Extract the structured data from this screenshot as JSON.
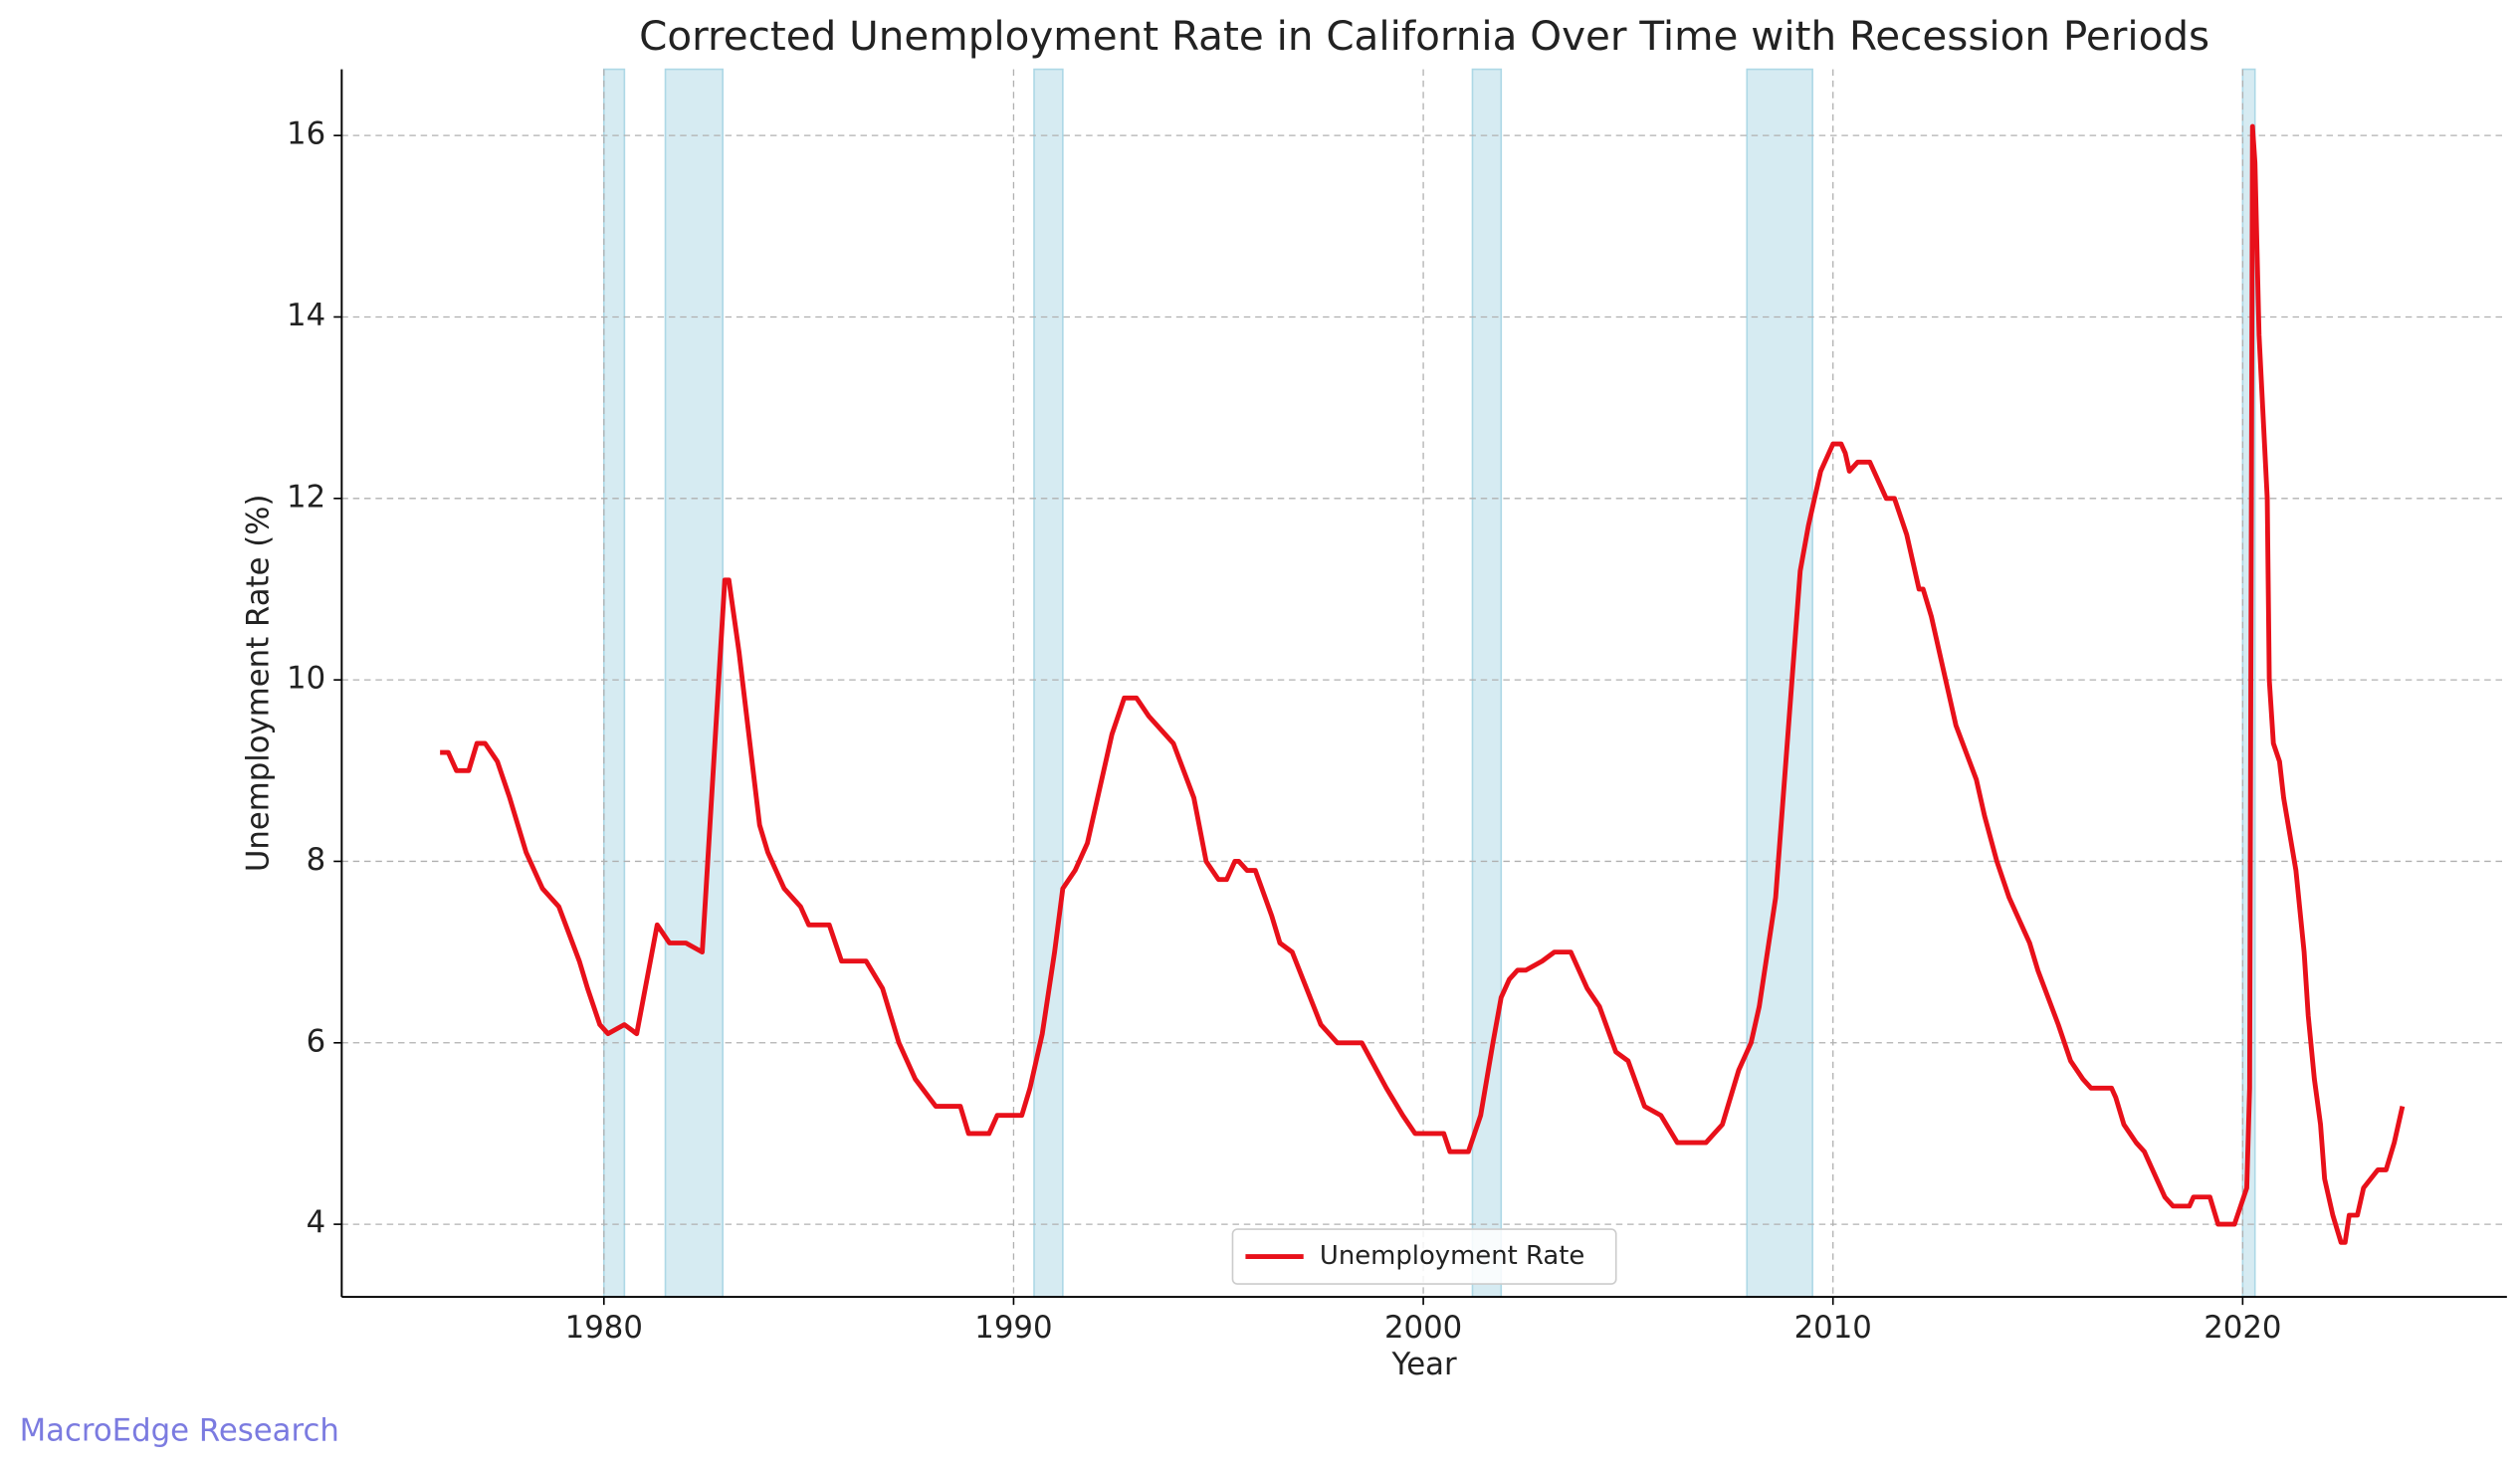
{
  "chart_data": {
    "type": "line",
    "title": "Corrected Unemployment Rate in California Over Time with Recession Periods",
    "xlabel": "Year",
    "ylabel": "Unemployment Rate (%)",
    "watermark": "MacroEdge Research",
    "x": [
      1976.0,
      1976.2,
      1976.4,
      1976.7,
      1976.9,
      1977.1,
      1977.4,
      1977.7,
      1978.1,
      1978.5,
      1978.9,
      1979.4,
      1979.6,
      1979.9,
      1980.1,
      1980.5,
      1980.8,
      1981.3,
      1981.6,
      1982.0,
      1982.4,
      1982.95,
      1983.05,
      1983.3,
      1983.8,
      1984.0,
      1984.4,
      1984.8,
      1985.0,
      1985.5,
      1985.8,
      1986.4,
      1986.8,
      1987.2,
      1987.6,
      1988.1,
      1988.7,
      1988.9,
      1989.4,
      1989.6,
      1990.2,
      1990.4,
      1990.7,
      1991.0,
      1991.2,
      1991.5,
      1991.8,
      1992.1,
      1992.4,
      1992.7,
      1993.0,
      1993.3,
      1993.9,
      1994.4,
      1994.7,
      1995.0,
      1995.2,
      1995.4,
      1995.5,
      1995.7,
      1995.9,
      1996.3,
      1996.5,
      1996.8,
      1997.5,
      1997.9,
      1998.3,
      1998.5,
      1999.1,
      1999.5,
      1999.8,
      2000.5,
      2000.65,
      2001.1,
      2001.4,
      2001.7,
      2001.9,
      2002.1,
      2002.3,
      2002.5,
      2002.9,
      2003.2,
      2003.6,
      2004.0,
      2004.3,
      2004.7,
      2005.0,
      2005.4,
      2005.8,
      2006.2,
      2006.9,
      2007.3,
      2007.7,
      2008.0,
      2008.2,
      2008.6,
      2008.8,
      2009.0,
      2009.2,
      2009.4,
      2009.7,
      2010.0,
      2010.2,
      2010.3,
      2010.4,
      2010.6,
      2010.9,
      2011.3,
      2011.5,
      2011.8,
      2012.1,
      2012.2,
      2012.4,
      2012.6,
      2012.8,
      2013.0,
      2013.5,
      2013.7,
      2014.0,
      2014.3,
      2014.8,
      2015.0,
      2015.5,
      2015.8,
      2016.1,
      2016.3,
      2016.8,
      2016.9,
      2017.1,
      2017.4,
      2017.6,
      2017.9,
      2018.1,
      2018.3,
      2018.7,
      2018.8,
      2019.2,
      2019.4,
      2019.8,
      2020.1,
      2020.17,
      2020.24,
      2020.3,
      2020.4,
      2020.6,
      2020.65,
      2020.75,
      2020.9,
      2021.0,
      2021.15,
      2021.3,
      2021.5,
      2021.6,
      2021.75,
      2021.9,
      2022.0,
      2022.2,
      2022.4,
      2022.5,
      2022.6,
      2022.8,
      2022.95,
      2023.3,
      2023.5,
      2023.7,
      2023.9
    ],
    "series": [
      {
        "name": "Unemployment Rate",
        "color": "#e8101a",
        "values": [
          9.2,
          9.2,
          9.0,
          9.0,
          9.3,
          9.3,
          9.1,
          8.7,
          8.1,
          7.7,
          7.5,
          6.9,
          6.6,
          6.2,
          6.1,
          6.2,
          6.1,
          7.3,
          7.1,
          7.1,
          7.0,
          11.1,
          11.1,
          10.3,
          8.4,
          8.1,
          7.7,
          7.5,
          7.3,
          7.3,
          6.9,
          6.9,
          6.6,
          6.0,
          5.6,
          5.3,
          5.3,
          5.0,
          5.0,
          5.2,
          5.2,
          5.5,
          6.1,
          7.0,
          7.7,
          7.9,
          8.2,
          8.8,
          9.4,
          9.8,
          9.8,
          9.6,
          9.3,
          8.7,
          8.0,
          7.8,
          7.8,
          8.0,
          8.0,
          7.9,
          7.9,
          7.4,
          7.1,
          7.0,
          6.2,
          6.0,
          6.0,
          6.0,
          5.5,
          5.2,
          5.0,
          5.0,
          4.8,
          4.8,
          5.2,
          6.0,
          6.5,
          6.7,
          6.8,
          6.8,
          6.9,
          7.0,
          7.0,
          6.6,
          6.4,
          5.9,
          5.8,
          5.3,
          5.2,
          4.9,
          4.9,
          5.1,
          5.7,
          6.0,
          6.4,
          7.6,
          8.8,
          10.0,
          11.2,
          11.7,
          12.3,
          12.6,
          12.6,
          12.5,
          12.3,
          12.4,
          12.4,
          12.0,
          12.0,
          11.6,
          11.0,
          11.0,
          10.7,
          10.3,
          9.9,
          9.5,
          8.9,
          8.5,
          8.0,
          7.6,
          7.1,
          6.8,
          6.2,
          5.8,
          5.6,
          5.5,
          5.5,
          5.4,
          5.1,
          4.9,
          4.8,
          4.5,
          4.3,
          4.2,
          4.2,
          4.3,
          4.3,
          4.0,
          4.0,
          4.4,
          5.5,
          16.1,
          15.7,
          13.8,
          12.0,
          10.0,
          9.3,
          9.1,
          8.7,
          8.3,
          7.9,
          7.0,
          6.3,
          5.6,
          5.1,
          4.5,
          4.1,
          3.8,
          3.8,
          4.1,
          4.1,
          4.4,
          4.6,
          4.6,
          4.9,
          5.3
        ]
      }
    ],
    "recession_periods": [
      [
        1980.0,
        1980.5
      ],
      [
        1981.5,
        1982.9
      ],
      [
        1990.5,
        1991.2
      ],
      [
        2001.2,
        2001.9
      ],
      [
        2007.9,
        2009.5
      ],
      [
        2020.0,
        2020.3
      ]
    ],
    "recession_color": "#add8e6",
    "xlim": [
      1973.6,
      2026.45
    ],
    "ylim": [
      3.2,
      16.73
    ],
    "xticks": [
      1980,
      1990,
      2000,
      2010,
      2020
    ],
    "yticks": [
      4,
      6,
      8,
      10,
      12,
      14,
      16
    ],
    "grid": true,
    "legend": "lower center"
  }
}
